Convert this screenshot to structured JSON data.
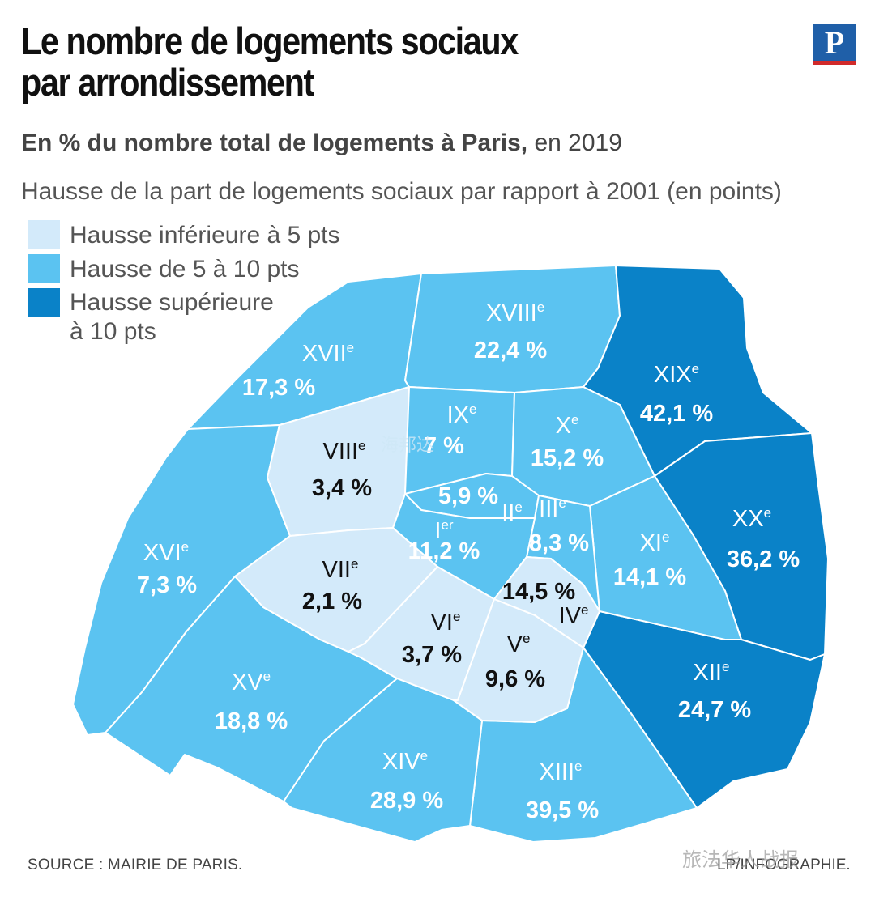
{
  "title": {
    "line1": "Le nombre de logements sociaux",
    "line2": "par arrondissement"
  },
  "logo": {
    "letter": "P"
  },
  "subtitle": {
    "bold": "En % du nombre total de logements à Paris,",
    "normal": " en 2019"
  },
  "legend": {
    "title": "Hausse de la part de logements sociaux par rapport à 2001 (en points)",
    "items": [
      {
        "label": "Hausse inférieure à 5 pts",
        "color": "#d3eafa"
      },
      {
        "label": "Hausse de 5 à 10 pts",
        "color": "#5bc3f1"
      },
      {
        "label_line1": "Hausse supérieure",
        "label_line2": "à 10 pts",
        "color": "#0a82c8"
      }
    ]
  },
  "districts": [
    {
      "id": "I",
      "name": "I",
      "sup": "er",
      "value": "11,2 %",
      "category": "mid"
    },
    {
      "id": "II",
      "name": "II",
      "sup": "e",
      "value": "5,9 %",
      "category": "mid"
    },
    {
      "id": "III",
      "name": "III",
      "sup": "e",
      "value": "8,3 %",
      "category": "mid"
    },
    {
      "id": "IV",
      "name": "IV",
      "sup": "e",
      "value": "14,5 %",
      "category": "low"
    },
    {
      "id": "V",
      "name": "V",
      "sup": "e",
      "value": "9,6 %",
      "category": "low"
    },
    {
      "id": "VI",
      "name": "VI",
      "sup": "e",
      "value": "3,7 %",
      "category": "low"
    },
    {
      "id": "VII",
      "name": "VII",
      "sup": "e",
      "value": "2,1 %",
      "category": "low"
    },
    {
      "id": "VIII",
      "name": "VIII",
      "sup": "e",
      "value": "3,4 %",
      "category": "low"
    },
    {
      "id": "IX",
      "name": "IX",
      "sup": "e",
      "value": "7 %",
      "category": "mid"
    },
    {
      "id": "X",
      "name": "X",
      "sup": "e",
      "value": "15,2 %",
      "category": "mid"
    },
    {
      "id": "XI",
      "name": "XI",
      "sup": "e",
      "value": "14,1 %",
      "category": "mid"
    },
    {
      "id": "XII",
      "name": "XII",
      "sup": "e",
      "value": "24,7 %",
      "category": "high"
    },
    {
      "id": "XIII",
      "name": "XIII",
      "sup": "e",
      "value": "39,5 %",
      "category": "mid"
    },
    {
      "id": "XIV",
      "name": "XIV",
      "sup": "e",
      "value": "28,9 %",
      "category": "mid"
    },
    {
      "id": "XV",
      "name": "XV",
      "sup": "e",
      "value": "18,8 %",
      "category": "mid"
    },
    {
      "id": "XVI",
      "name": "XVI",
      "sup": "e",
      "value": "7,3 %",
      "category": "mid"
    },
    {
      "id": "XVII",
      "name": "XVII",
      "sup": "e",
      "value": "17,3 %",
      "category": "mid"
    },
    {
      "id": "XVIII",
      "name": "XVIII",
      "sup": "e",
      "value": "22,4 %",
      "category": "mid"
    },
    {
      "id": "XIX",
      "name": "XIX",
      "sup": "e",
      "value": "42,1 %",
      "category": "high"
    },
    {
      "id": "XX",
      "name": "XX",
      "sup": "e",
      "value": "36,2 %",
      "category": "high"
    }
  ],
  "colors": {
    "low": "#d3eafa",
    "mid": "#5bc3f1",
    "high": "#0a82c8",
    "border": "#ffffff"
  },
  "footer": {
    "source": "SOURCE : MAIRIE DE PARIS.",
    "credit": "LP/INFOGRAPHIE."
  },
  "watermarks": {
    "corner": "旅法华人战报",
    "center": "海邦达"
  }
}
